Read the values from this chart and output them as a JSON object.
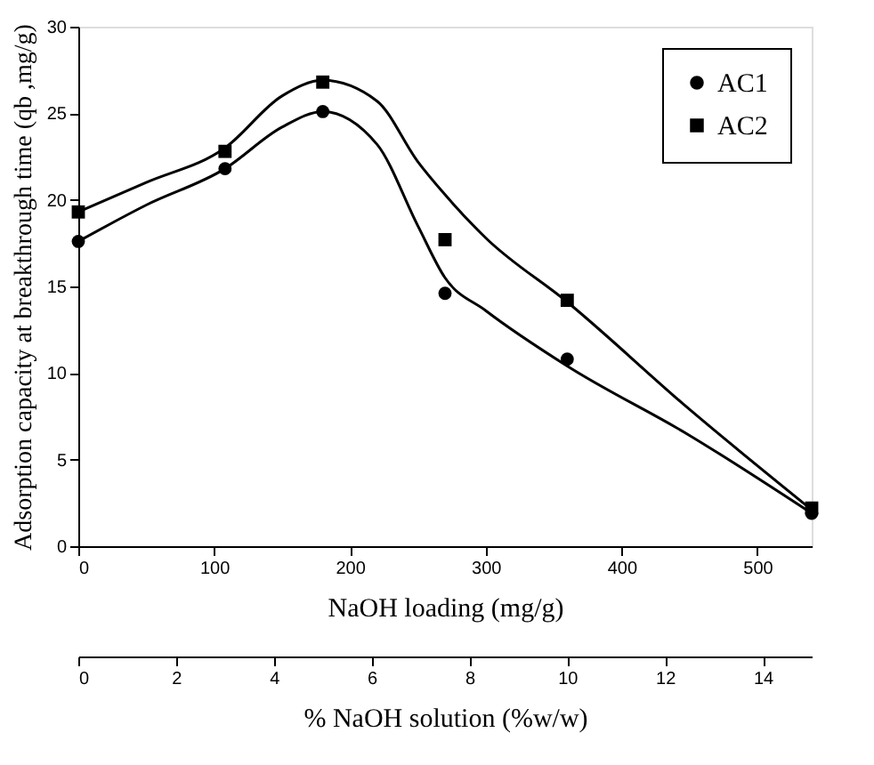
{
  "chart_data": {
    "type": "scatter",
    "xlabel": "NaOH loading (mg/g)",
    "ylabel": "Adsorption capacity at breakthrough time (qb ,mg/g)",
    "x2label": "% NaOH solution (%w/w)",
    "xlim": [
      0,
      540
    ],
    "xticks": [
      0,
      100,
      200,
      300,
      400,
      500
    ],
    "ylim": [
      0,
      30
    ],
    "yticks": [
      0,
      5,
      10,
      15,
      20,
      25,
      30
    ],
    "x2lim": [
      0,
      15
    ],
    "x2ticks": [
      0,
      2,
      4,
      6,
      8,
      10,
      12,
      14
    ],
    "legend": "top right",
    "grid": false,
    "series": [
      {
        "name": "AC1",
        "marker": "circle",
        "color": "#000000",
        "x": [
          0,
          108,
          180,
          270,
          360,
          540
        ],
        "values": [
          17.6,
          21.8,
          25.1,
          14.6,
          10.8,
          1.9
        ]
      },
      {
        "name": "AC2",
        "marker": "square",
        "color": "#000000",
        "x": [
          0,
          108,
          180,
          270,
          360,
          540
        ],
        "values": [
          19.3,
          22.8,
          26.8,
          17.7,
          14.2,
          2.2
        ]
      },
      {
        "type": "line",
        "marker": "none",
        "line_style": "solid",
        "color": "#000000",
        "x": [
          0,
          50,
          108,
          150,
          180,
          220,
          250,
          270,
          300,
          360,
          450,
          540
        ],
        "values": [
          17.6,
          19.7,
          21.8,
          24.2,
          25.1,
          23.2,
          18.5,
          15.5,
          13.6,
          10.4,
          6.4,
          1.9
        ]
      },
      {
        "type": "line",
        "marker": "none",
        "line_style": "solid",
        "color": "#000000",
        "x": [
          0,
          50,
          108,
          150,
          180,
          220,
          250,
          270,
          300,
          360,
          450,
          540
        ],
        "values": [
          19.3,
          21.0,
          23.0,
          26.0,
          26.9,
          25.7,
          22.2,
          20.3,
          17.8,
          14.1,
          7.9,
          2.1
        ]
      }
    ]
  }
}
